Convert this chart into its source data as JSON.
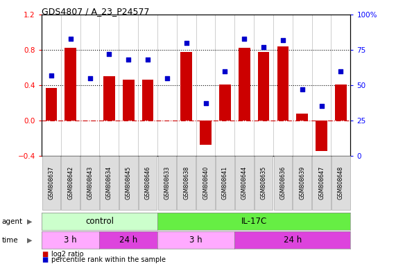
{
  "title": "GDS4807 / A_23_P24577",
  "samples": [
    "GSM808637",
    "GSM808642",
    "GSM808643",
    "GSM808634",
    "GSM808645",
    "GSM808646",
    "GSM808633",
    "GSM808638",
    "GSM808640",
    "GSM808641",
    "GSM808644",
    "GSM808635",
    "GSM808636",
    "GSM808639",
    "GSM808647",
    "GSM808648"
  ],
  "log2_ratio": [
    0.37,
    0.82,
    0.0,
    0.5,
    0.46,
    0.46,
    0.0,
    0.78,
    -0.28,
    0.41,
    0.82,
    0.78,
    0.84,
    0.08,
    -0.35,
    0.41
  ],
  "percentile": [
    57,
    83,
    55,
    72,
    68,
    68,
    55,
    80,
    37,
    60,
    83,
    77,
    82,
    47,
    35,
    60
  ],
  "bar_color": "#cc0000",
  "dot_color": "#0000cc",
  "ylim_left": [
    -0.4,
    1.2
  ],
  "ylim_right": [
    0,
    100
  ],
  "yticks_left": [
    -0.4,
    0.0,
    0.4,
    0.8,
    1.2
  ],
  "yticks_right": [
    0,
    25,
    50,
    75,
    100
  ],
  "hlines": [
    0.4,
    0.8
  ],
  "zero_line_color": "#cc0000",
  "agent_control_label": "control",
  "agent_il17c_label": "IL-17C",
  "agent_control_color": "#ccffcc",
  "agent_il17c_color": "#66ee44",
  "time_color_3h": "#ffaaff",
  "time_color_24h": "#dd44dd",
  "legend_log2_color": "#cc0000",
  "legend_pct_color": "#0000cc",
  "background_color": "#ffffff",
  "plot_bg_color": "#ffffff"
}
